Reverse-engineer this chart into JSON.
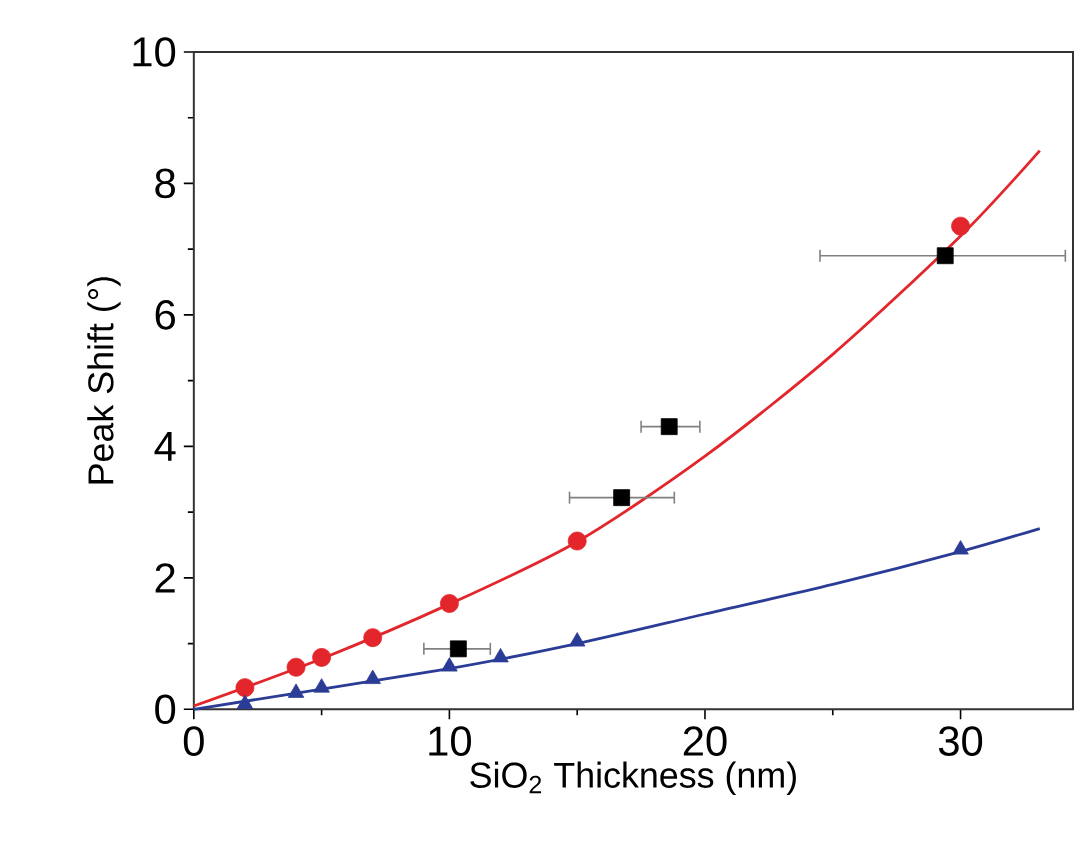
{
  "chart_data": {
    "type": "scatter",
    "xlabel": "SiO$_{2}$ Thickness (nm)",
    "ylabel": "Peak Shift (°)",
    "xlim": [
      0,
      34.4
    ],
    "ylim": [
      0,
      10
    ],
    "xticks": [
      0,
      10,
      20,
      30
    ],
    "yticks": [
      0,
      2,
      4,
      6,
      8,
      10
    ],
    "grid": false,
    "series": [
      {
        "type": "line",
        "color": "#e3262b",
        "marker": "none",
        "x": [
          0,
          5,
          10,
          15,
          20,
          25,
          30,
          33.1
        ],
        "values": [
          0.05,
          0.77,
          1.6,
          2.55,
          3.85,
          5.4,
          7.2,
          8.5
        ]
      },
      {
        "type": "line",
        "color": "#2b3c96",
        "marker": "none",
        "x": [
          0,
          10,
          15,
          20,
          25,
          30,
          33.1
        ],
        "values": [
          0,
          0.62,
          1.0,
          1.45,
          1.9,
          2.4,
          2.75
        ]
      },
      {
        "color": "#e3262b",
        "marker": "circle",
        "x": [
          2,
          4,
          5,
          7,
          10,
          15,
          30
        ],
        "values": [
          0.33,
          0.64,
          0.79,
          1.09,
          1.61,
          2.56,
          7.35
        ]
      },
      {
        "color": "#2b3c96",
        "marker": "triangle",
        "x": [
          2,
          4,
          5,
          7,
          10,
          12,
          15,
          30
        ],
        "values": [
          0.08,
          0.25,
          0.33,
          0.46,
          0.65,
          0.79,
          1.03,
          2.43
        ]
      },
      {
        "color": "#000000",
        "marker": "square",
        "x": [
          10.35,
          16.74,
          18.6,
          29.4
        ],
        "values": [
          0.92,
          3.22,
          4.3,
          6.9
        ],
        "xerrors": [
          [
            9.0,
            11.6
          ],
          [
            14.7,
            18.8
          ],
          [
            17.5,
            19.8
          ],
          [
            24.5,
            34.1
          ]
        ]
      }
    ]
  }
}
